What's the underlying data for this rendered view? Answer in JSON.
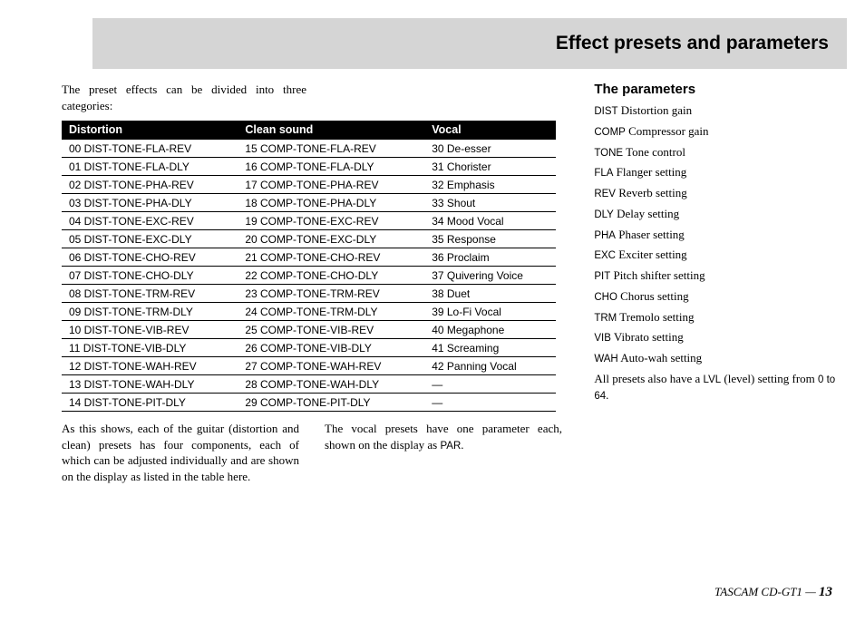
{
  "header": {
    "title": "Effect presets and parameters"
  },
  "intro": "The preset effects can be divided into three categories:",
  "table": {
    "headers": [
      "Distortion",
      "Clean sound",
      "Vocal"
    ],
    "rows": [
      [
        "00 DIST-TONE-FLA-REV",
        "15 COMP-TONE-FLA-REV",
        "30 De-esser"
      ],
      [
        "01 DIST-TONE-FLA-DLY",
        "16 COMP-TONE-FLA-DLY",
        "31 Chorister"
      ],
      [
        "02 DIST-TONE-PHA-REV",
        "17 COMP-TONE-PHA-REV",
        "32 Emphasis"
      ],
      [
        "03 DIST-TONE-PHA-DLY",
        "18 COMP-TONE-PHA-DLY",
        "33 Shout"
      ],
      [
        "04 DIST-TONE-EXC-REV",
        "19 COMP-TONE-EXC-REV",
        "34 Mood Vocal"
      ],
      [
        "05 DIST-TONE-EXC-DLY",
        "20 COMP-TONE-EXC-DLY",
        "35 Response"
      ],
      [
        "06 DIST-TONE-CHO-REV",
        "21 COMP-TONE-CHO-REV",
        "36 Proclaim"
      ],
      [
        "07 DIST-TONE-CHO-DLY",
        "22 COMP-TONE-CHO-DLY",
        "37 Quivering Voice"
      ],
      [
        "08 DIST-TONE-TRM-REV",
        "23 COMP-TONE-TRM-REV",
        "38 Duet"
      ],
      [
        "09 DIST-TONE-TRM-DLY",
        "24 COMP-TONE-TRM-DLY",
        "39 Lo-Fi Vocal"
      ],
      [
        "10 DIST-TONE-VIB-REV",
        "25 COMP-TONE-VIB-REV",
        "40 Megaphone"
      ],
      [
        "11 DIST-TONE-VIB-DLY",
        "26 COMP-TONE-VIB-DLY",
        "41 Screaming"
      ],
      [
        "12 DIST-TONE-WAH-REV",
        "27 COMP-TONE-WAH-REV",
        "42 Panning Vocal"
      ],
      [
        "13 DIST-TONE-WAH-DLY",
        "28 COMP-TONE-WAH-DLY",
        "—"
      ],
      [
        "14 DIST-TONE-PIT-DLY",
        "29 COMP-TONE-PIT-DLY",
        "—"
      ]
    ]
  },
  "below_left": "As this shows, each of the guitar (distortion and clean) presets has four components, each of which can be adjusted individually and are shown on the display as listed in the table here.",
  "below_right_pre": "The vocal presets have one parameter each, shown on the display as ",
  "below_right_code": "PAR",
  "below_right_post": ".",
  "params": {
    "heading": "The parameters",
    "items": [
      {
        "code": "DIST",
        "desc": "Distortion gain"
      },
      {
        "code": "COMP",
        "desc": "Compressor gain"
      },
      {
        "code": "TONE",
        "desc": "Tone control"
      },
      {
        "code": "FLA",
        "desc": "Flanger setting"
      },
      {
        "code": "REV",
        "desc": "Reverb setting"
      },
      {
        "code": "DLY",
        "desc": "Delay setting"
      },
      {
        "code": "PHA",
        "desc": "Phaser setting"
      },
      {
        "code": "EXC",
        "desc": "Exciter setting"
      },
      {
        "code": "PIT",
        "desc": "Pitch shifter setting"
      },
      {
        "code": "CHO",
        "desc": "Chorus setting"
      },
      {
        "code": "TRM",
        "desc": "Tremolo setting"
      },
      {
        "code": "VIB",
        "desc": "Vibrato setting"
      },
      {
        "code": "WAH",
        "desc": "Auto-wah setting"
      }
    ],
    "note_pre": "All presets also have a ",
    "note_code": "LVL",
    "note_mid": " (level) setting from ",
    "note_range": "0 to 64",
    "note_post": "."
  },
  "footer": {
    "product": "TASCAM CD-GT1",
    "sep": " — ",
    "page": "13"
  }
}
